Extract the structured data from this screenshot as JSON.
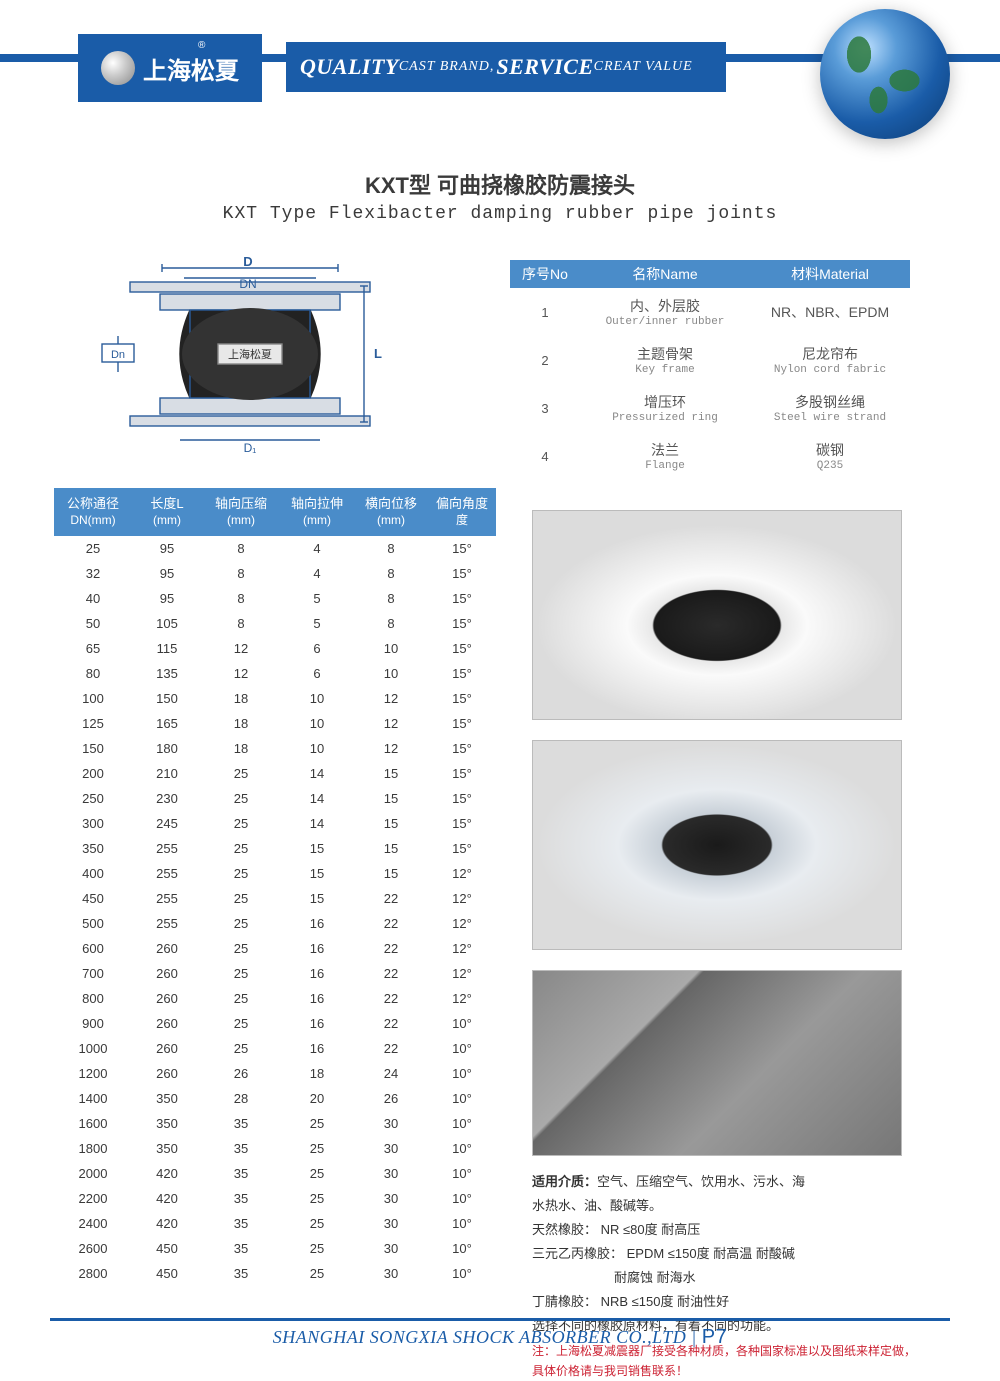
{
  "brand": {
    "name_zh": "上海松夏",
    "reg_mark": "®",
    "slogan_quality": "QUALITY",
    "slogan_cast": " CAST BRAND,",
    "slogan_service": "SERVICE",
    "slogan_creat": " CREAT VALUE"
  },
  "title": {
    "zh": "KXT型  可曲挠橡胶防震接头",
    "en": "KXT Type Flexibacter damping rubber pipe joints"
  },
  "diagram": {
    "labels": {
      "D": "D",
      "DN": "DN",
      "Dn": "Dn",
      "D1": "D1",
      "L": "L",
      "brand": "上海松夏"
    },
    "colors": {
      "line": "#2a5c9a",
      "rubber": "#222",
      "flange": "#d8dde4"
    }
  },
  "material_table": {
    "header": {
      "no": "序号No",
      "name": "名称Name",
      "material": "材料Material"
    },
    "rows": [
      {
        "no": "1",
        "name_zh": "内、外层胶",
        "name_en": "Outer/inner rubber",
        "mat_zh": "NR、NBR、EPDM",
        "mat_en": ""
      },
      {
        "no": "2",
        "name_zh": "主题骨架",
        "name_en": "Key frame",
        "mat_zh": "尼龙帘布",
        "mat_en": "Nylon cord fabric"
      },
      {
        "no": "3",
        "name_zh": "增压环",
        "name_en": "Pressurized ring",
        "mat_zh": "多股钢丝绳",
        "mat_en": "Steel wire strand"
      },
      {
        "no": "4",
        "name_zh": "法兰",
        "name_en": "Flange",
        "mat_zh": "碳钢",
        "mat_en": "Q235"
      }
    ],
    "colors": {
      "header_bg": "#4a8cc9",
      "header_fg": "#ffffff",
      "row_fg": "#555555"
    }
  },
  "spec_table": {
    "header": {
      "c1a": "公称通径",
      "c1b": "DN(mm)",
      "c2a": "长度L",
      "c2b": "(mm)",
      "c3a": "轴向压缩",
      "c3b": "(mm)",
      "c4a": "轴向拉伸",
      "c4b": "(mm)",
      "c5a": "横向位移",
      "c5b": "(mm)",
      "c6a": "偏向角度",
      "c6b": "度"
    },
    "rows": [
      [
        "25",
        "95",
        "8",
        "4",
        "8",
        "15°"
      ],
      [
        "32",
        "95",
        "8",
        "4",
        "8",
        "15°"
      ],
      [
        "40",
        "95",
        "8",
        "5",
        "8",
        "15°"
      ],
      [
        "50",
        "105",
        "8",
        "5",
        "8",
        "15°"
      ],
      [
        "65",
        "115",
        "12",
        "6",
        "10",
        "15°"
      ],
      [
        "80",
        "135",
        "12",
        "6",
        "10",
        "15°"
      ],
      [
        "100",
        "150",
        "18",
        "10",
        "12",
        "15°"
      ],
      [
        "125",
        "165",
        "18",
        "10",
        "12",
        "15°"
      ],
      [
        "150",
        "180",
        "18",
        "10",
        "12",
        "15°"
      ],
      [
        "200",
        "210",
        "25",
        "14",
        "15",
        "15°"
      ],
      [
        "250",
        "230",
        "25",
        "14",
        "15",
        "15°"
      ],
      [
        "300",
        "245",
        "25",
        "14",
        "15",
        "15°"
      ],
      [
        "350",
        "255",
        "25",
        "15",
        "15",
        "15°"
      ],
      [
        "400",
        "255",
        "25",
        "15",
        "15",
        "12°"
      ],
      [
        "450",
        "255",
        "25",
        "15",
        "22",
        "12°"
      ],
      [
        "500",
        "255",
        "25",
        "16",
        "22",
        "12°"
      ],
      [
        "600",
        "260",
        "25",
        "16",
        "22",
        "12°"
      ],
      [
        "700",
        "260",
        "25",
        "16",
        "22",
        "12°"
      ],
      [
        "800",
        "260",
        "25",
        "16",
        "22",
        "12°"
      ],
      [
        "900",
        "260",
        "25",
        "16",
        "22",
        "10°"
      ],
      [
        "1000",
        "260",
        "25",
        "16",
        "22",
        "10°"
      ],
      [
        "1200",
        "260",
        "26",
        "18",
        "24",
        "10°"
      ],
      [
        "1400",
        "350",
        "28",
        "20",
        "26",
        "10°"
      ],
      [
        "1600",
        "350",
        "35",
        "25",
        "30",
        "10°"
      ],
      [
        "1800",
        "350",
        "35",
        "25",
        "30",
        "10°"
      ],
      [
        "2000",
        "420",
        "35",
        "25",
        "30",
        "10°"
      ],
      [
        "2200",
        "420",
        "35",
        "25",
        "30",
        "10°"
      ],
      [
        "2400",
        "420",
        "35",
        "25",
        "30",
        "10°"
      ],
      [
        "2600",
        "450",
        "35",
        "25",
        "30",
        "10°"
      ],
      [
        "2800",
        "450",
        "35",
        "25",
        "30",
        "10°"
      ]
    ],
    "colors": {
      "header_bg": "#4a8cc9",
      "header_fg": "#ffffff",
      "row_fg": "#3a3a3a"
    }
  },
  "notes": {
    "line1_label": "适用介质：",
    "line1_text": "空气、压缩空气、饮用水、污水、海",
    "line1b": "水热水、油、酸碱等。",
    "line2": "天然橡胶：  NR   ≤80度   耐高压",
    "line3": "三元乙丙橡胶：  EPDM   ≤150度  耐高温  耐酸碱",
    "line3b": "耐腐蚀  耐海水",
    "line4": "丁腈橡胶：  NRB   ≤150度  耐油性好",
    "line5": "选择不同的橡胶原材料，有着不同的功能。",
    "footnote": "注：上海松夏减震器厂接受各种材质，各种国家标准以及图纸来样定做，具体价格请与我司销售联系！"
  },
  "footer": {
    "company": "SHANGHAI SONGXIA SHOCK ABSORBER CO.,LTD",
    "sep": " | ",
    "page": "P7"
  },
  "theme": {
    "primary": "#1a5ca8",
    "header_blue": "#4a8cc9",
    "page_bg": "#ffffff",
    "text": "#333333"
  }
}
